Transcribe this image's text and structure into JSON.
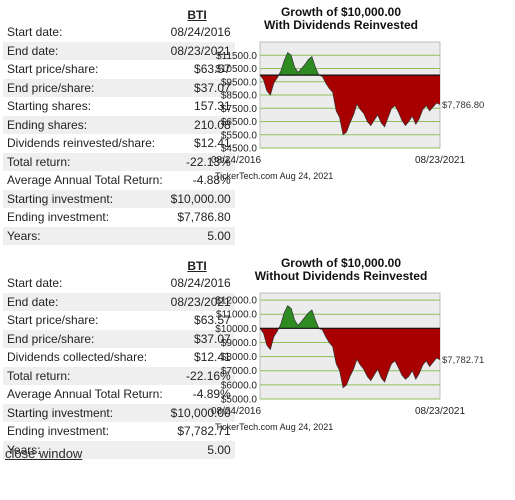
{
  "reinvested": {
    "ticker": "BTI",
    "rows": [
      {
        "label": "Start date:",
        "value": "08/24/2016"
      },
      {
        "label": "End date:",
        "value": "08/23/2021"
      },
      {
        "label": "Start price/share:",
        "value": "$63.57"
      },
      {
        "label": "End price/share:",
        "value": "$37.07"
      },
      {
        "label": "Starting shares:",
        "value": "157.31"
      },
      {
        "label": "Ending shares:",
        "value": "210.08"
      },
      {
        "label": "Dividends reinvested/share:",
        "value": "$12.41"
      },
      {
        "label": "Total return:",
        "value": "-22.13%"
      },
      {
        "label": "Average Annual Total Return:",
        "value": "-4.88%"
      },
      {
        "label": "Starting investment:",
        "value": "$10,000.00"
      },
      {
        "label": "Ending investment:",
        "value": "$7,786.80"
      },
      {
        "label": "Years:",
        "value": "5.00"
      }
    ]
  },
  "collected": {
    "ticker": "BTI",
    "rows": [
      {
        "label": "Start date:",
        "value": "08/24/2016"
      },
      {
        "label": "End date:",
        "value": "08/23/2021"
      },
      {
        "label": "Start price/share:",
        "value": "$63.57"
      },
      {
        "label": "End price/share:",
        "value": "$37.07"
      },
      {
        "label": "Dividends collected/share:",
        "value": "$12.41"
      },
      {
        "label": "Total return:",
        "value": "-22.16%"
      },
      {
        "label": "Average Annual Total Return:",
        "value": "-4.89%"
      },
      {
        "label": "Starting investment:",
        "value": "$10,000.00"
      },
      {
        "label": "Ending investment:",
        "value": "$7,782.71"
      },
      {
        "label": "Years:",
        "value": "5.00"
      }
    ]
  },
  "close_link": "close window",
  "colors": {
    "above": "#2e8b22",
    "below": "#a80000",
    "plot_bg": "#ececec",
    "grid": "#8fbf5a"
  },
  "chart_data": [
    {
      "type": "area",
      "title": "Growth of $10,000.00",
      "subtitle": "With Dividends Reinvested",
      "baseline": 10000,
      "ylim": [
        4500,
        12500
      ],
      "yticks": [
        "$11500.0",
        "$10500.0",
        "$9500.0",
        "$8500.0",
        "$7500.0",
        "$6500.0",
        "$5500.0",
        "$4500.0"
      ],
      "ytick_values": [
        11500,
        10500,
        9500,
        8500,
        7500,
        6500,
        5500,
        4500
      ],
      "x_start": "08/24/2016",
      "x_end": "08/23/2021",
      "end_value_label": "$7,786.80",
      "credit": "TickerTech.com  Aug 24, 2021",
      "values": [
        10000,
        9650,
        8800,
        8500,
        9400,
        9800,
        10300,
        11100,
        11700,
        11500,
        10600,
        10200,
        10500,
        10800,
        11200,
        11400,
        10600,
        10000,
        9900,
        9400,
        9000,
        8700,
        7300,
        6800,
        5500,
        5700,
        6400,
        7000,
        7800,
        7400,
        7100,
        6500,
        6200,
        6600,
        7000,
        6400,
        6100,
        6800,
        7500,
        7700,
        7200,
        6600,
        6200,
        6500,
        6900,
        6300,
        6700,
        7400,
        7700,
        7300,
        7600,
        7900,
        7786.8
      ]
    },
    {
      "type": "area",
      "title": "Growth of $10,000.00",
      "subtitle": "Without Dividends Reinvested",
      "baseline": 10000,
      "ylim": [
        5000,
        12500
      ],
      "yticks": [
        "$12000.0",
        "$11000.0",
        "$10000.0",
        "$9000.0",
        "$8000.0",
        "$7000.0",
        "$6000.0",
        "$5000.0"
      ],
      "ytick_values": [
        12000,
        11000,
        10000,
        9000,
        8000,
        7000,
        6000,
        5000
      ],
      "x_start": "08/24/2016",
      "x_end": "08/23/2021",
      "end_value_label": "$7,782.71",
      "credit": "TickerTech.com  Aug 24, 2021",
      "values": [
        10000,
        9650,
        8800,
        8500,
        9400,
        9800,
        10300,
        11100,
        11600,
        11400,
        10600,
        10200,
        10500,
        10800,
        11100,
        11300,
        10600,
        10000,
        9900,
        9400,
        9000,
        8700,
        7500,
        7000,
        5800,
        6000,
        6600,
        7100,
        7800,
        7400,
        7100,
        6600,
        6300,
        6700,
        7100,
        6500,
        6200,
        6900,
        7500,
        7700,
        7200,
        6700,
        6400,
        6600,
        7000,
        6400,
        6800,
        7400,
        7700,
        7300,
        7600,
        7900,
        7782.71
      ]
    }
  ]
}
